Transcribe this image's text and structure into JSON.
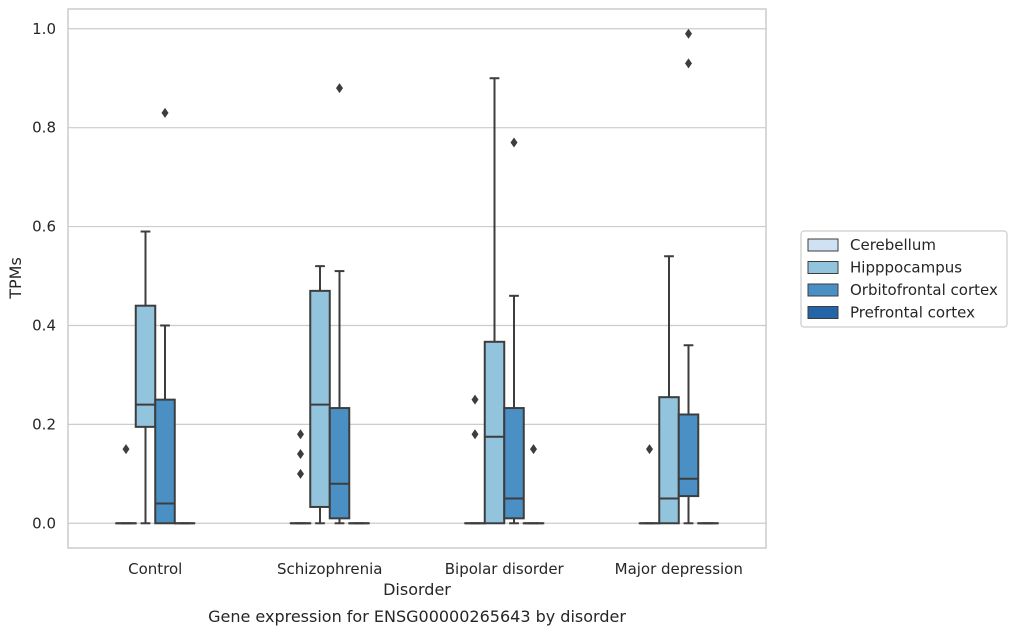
{
  "chart_data": {
    "type": "box",
    "xlabel": "Disorder",
    "ylabel": "TPMs",
    "caption": "Gene expression for ENSG00000265643 by disorder",
    "ylim": [
      -0.05,
      1.04
    ],
    "yticks": [
      "0.0",
      "0.2",
      "0.4",
      "0.6",
      "0.8",
      "1.0"
    ],
    "grid": "horizontal",
    "legend_position": "right",
    "categories": [
      "Control",
      "Schizophrenia",
      "Bipolar disorder",
      "Major depression"
    ],
    "series": [
      {
        "name": "Cerebellum",
        "color": "#cfe1f2",
        "boxes": [
          {
            "whislo": 0,
            "q1": 0,
            "med": 0,
            "q3": 0,
            "whishi": 0,
            "fliers": [
              0.15
            ]
          },
          {
            "whislo": 0,
            "q1": 0,
            "med": 0,
            "q3": 0,
            "whishi": 0,
            "fliers": [
              0.1,
              0.14,
              0.18
            ]
          },
          {
            "whislo": 0,
            "q1": 0,
            "med": 0,
            "q3": 0,
            "whishi": 0,
            "fliers": [
              0.18,
              0.25
            ]
          },
          {
            "whislo": 0,
            "q1": 0,
            "med": 0,
            "q3": 0,
            "whishi": 0,
            "fliers": [
              0.15
            ]
          }
        ]
      },
      {
        "name": "Hipppocampus",
        "color": "#93c4de",
        "boxes": [
          {
            "whislo": 0,
            "q1": 0.195,
            "med": 0.24,
            "q3": 0.44,
            "whishi": 0.59,
            "fliers": []
          },
          {
            "whislo": 0,
            "q1": 0.033,
            "med": 0.24,
            "q3": 0.47,
            "whishi": 0.52,
            "fliers": []
          },
          {
            "whislo": 0,
            "q1": 0,
            "med": 0.175,
            "q3": 0.367,
            "whishi": 0.9,
            "fliers": []
          },
          {
            "whislo": 0,
            "q1": 0,
            "med": 0.05,
            "q3": 0.255,
            "whishi": 0.54,
            "fliers": []
          }
        ]
      },
      {
        "name": "Orbitofrontal cortex",
        "color": "#4a90c4",
        "boxes": [
          {
            "whislo": 0,
            "q1": 0,
            "med": 0.04,
            "q3": 0.25,
            "whishi": 0.4,
            "fliers": [
              0.83
            ]
          },
          {
            "whislo": 0,
            "q1": 0.01,
            "med": 0.08,
            "q3": 0.233,
            "whishi": 0.51,
            "fliers": [
              0.88
            ]
          },
          {
            "whislo": 0,
            "q1": 0.01,
            "med": 0.05,
            "q3": 0.233,
            "whishi": 0.46,
            "fliers": [
              0.77
            ]
          },
          {
            "whislo": 0,
            "q1": 0.055,
            "med": 0.09,
            "q3": 0.22,
            "whishi": 0.36,
            "fliers": [
              0.93,
              0.99
            ]
          }
        ]
      },
      {
        "name": "Prefrontal cortex",
        "color": "#2465a8",
        "boxes": [
          {
            "whislo": 0,
            "q1": 0,
            "med": 0,
            "q3": 0,
            "whishi": 0,
            "fliers": []
          },
          {
            "whislo": 0,
            "q1": 0,
            "med": 0,
            "q3": 0,
            "whishi": 0,
            "fliers": []
          },
          {
            "whislo": 0,
            "q1": 0,
            "med": 0,
            "q3": 0,
            "whishi": 0,
            "fliers": [
              0.15
            ]
          },
          {
            "whislo": 0,
            "q1": 0,
            "med": 0,
            "q3": 0,
            "whishi": 0,
            "fliers": []
          }
        ]
      }
    ]
  }
}
